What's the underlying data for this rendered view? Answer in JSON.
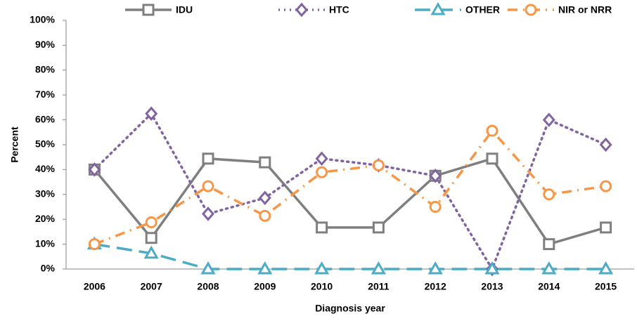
{
  "chart_data": {
    "type": "line",
    "x_label": "Diagnosis year",
    "y_label": "Percent",
    "categories": [
      "2006",
      "2007",
      "2008",
      "2009",
      "2010",
      "2011",
      "2012",
      "2013",
      "2014",
      "2015"
    ],
    "series": [
      {
        "name": "IDU",
        "color": "#7f7f7f",
        "marker": "square",
        "dash": "solid",
        "values": [
          40,
          12.5,
          44.4,
          42.9,
          16.7,
          16.7,
          37.5,
          44.4,
          10,
          16.7
        ]
      },
      {
        "name": "HTC",
        "color": "#8064a2",
        "marker": "diamond",
        "dash": "dot",
        "values": [
          40,
          62.5,
          22.2,
          28.6,
          44.4,
          41.7,
          37.5,
          0,
          60,
          50
        ]
      },
      {
        "name": "OTHER",
        "color": "#4bacc6",
        "marker": "triangle",
        "dash": "longdash",
        "values": [
          10,
          6.3,
          0,
          0,
          0,
          0,
          0,
          0,
          0,
          0
        ]
      },
      {
        "name": "NIR or NRR",
        "color": "#f79646",
        "marker": "circle",
        "dash": "dashdot",
        "values": [
          10,
          18.8,
          33.3,
          21.4,
          38.9,
          41.7,
          25,
          55.6,
          30,
          33.3
        ]
      }
    ],
    "ylim": [
      0,
      100
    ],
    "yticks": [
      {
        "value": 0,
        "label": "0%"
      },
      {
        "value": 10,
        "label": "10%"
      },
      {
        "value": 20,
        "label": "20%"
      },
      {
        "value": 30,
        "label": "30%"
      },
      {
        "value": 40,
        "label": "40%"
      },
      {
        "value": 50,
        "label": "50%"
      },
      {
        "value": 60,
        "label": "60%"
      },
      {
        "value": 70,
        "label": "70%"
      },
      {
        "value": 80,
        "label": "80%"
      },
      {
        "value": 90,
        "label": "90%"
      },
      {
        "value": 100,
        "label": "100%"
      }
    ],
    "grid": false,
    "legend": "top"
  }
}
